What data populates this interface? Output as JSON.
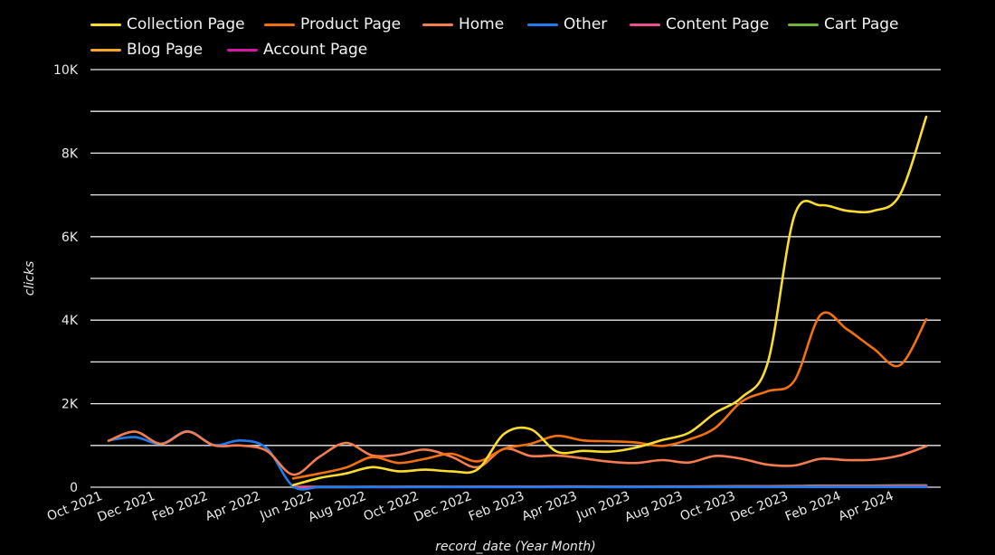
{
  "chart_data": {
    "type": "line",
    "title": "",
    "xlabel": "record_date (Year Month)",
    "ylabel": "clicks",
    "ylim": [
      0,
      10000
    ],
    "y_ticks": [
      {
        "value": 0,
        "label": "0"
      },
      {
        "value": 2000,
        "label": "2K"
      },
      {
        "value": 4000,
        "label": "4K"
      },
      {
        "value": 6000,
        "label": "6K"
      },
      {
        "value": 8000,
        "label": "8K"
      },
      {
        "value": 10000,
        "label": "10K"
      }
    ],
    "gridlines": [
      0,
      1000,
      2000,
      3000,
      4000,
      5000,
      6000,
      7000,
      8000,
      9000,
      10000
    ],
    "grid": true,
    "legend_position": "top",
    "categories": [
      "Oct 2021",
      "Nov 2021",
      "Dec 2021",
      "Jan 2022",
      "Feb 2022",
      "Mar 2022",
      "Apr 2022",
      "May 2022",
      "Jun 2022",
      "Jul 2022",
      "Aug 2022",
      "Sep 2022",
      "Oct 2022",
      "Nov 2022",
      "Dec 2022",
      "Jan 2023",
      "Feb 2023",
      "Mar 2023",
      "Apr 2023",
      "May 2023",
      "Jun 2023",
      "Jul 2023",
      "Aug 2023",
      "Sep 2023",
      "Oct 2023",
      "Nov 2023",
      "Dec 2023",
      "Jan 2024",
      "Feb 2024",
      "Mar 2024",
      "Apr 2024",
      "May 2024"
    ],
    "x_tick_labels": [
      "Oct 2021",
      "Dec 2021",
      "Feb 2022",
      "Apr 2022",
      "Jun 2022",
      "Aug 2022",
      "Oct 2022",
      "Dec 2022",
      "Feb 2023",
      "Apr 2023",
      "Jun 2023",
      "Aug 2023",
      "Oct 2023",
      "Dec 2023",
      "Feb 2024",
      "Apr 2024"
    ],
    "series": [
      {
        "name": "Collection Page",
        "color": "#f9dc2e",
        "values": [
          null,
          null,
          null,
          null,
          null,
          null,
          null,
          50,
          220,
          330,
          480,
          380,
          420,
          380,
          430,
          1280,
          1390,
          850,
          870,
          850,
          950,
          1130,
          1300,
          1780,
          2150,
          3000,
          6500,
          6750,
          6620,
          6620,
          7000,
          8870
        ]
      },
      {
        "name": "Product Page",
        "color": "#f2700d",
        "values": [
          null,
          null,
          null,
          null,
          null,
          null,
          null,
          210,
          330,
          470,
          720,
          580,
          680,
          800,
          620,
          920,
          1040,
          1230,
          1120,
          1100,
          1070,
          990,
          1140,
          1420,
          2050,
          2300,
          2550,
          4130,
          3780,
          3320,
          2920,
          4020
        ]
      },
      {
        "name": "Home",
        "color": "#f47c4f",
        "values": [
          1110,
          1330,
          1040,
          1330,
          1000,
          1000,
          870,
          300,
          730,
          1060,
          760,
          780,
          900,
          730,
          480,
          920,
          750,
          760,
          690,
          610,
          580,
          650,
          590,
          750,
          680,
          540,
          520,
          680,
          650,
          660,
          760,
          980
        ]
      },
      {
        "name": "Other",
        "color": "#1e7cf0",
        "values": [
          1120,
          1200,
          1040,
          1340,
          1010,
          1120,
          930,
          20,
          5,
          5,
          5,
          5,
          5,
          5,
          5,
          5,
          5,
          5,
          5,
          5,
          5,
          5,
          5,
          5,
          5,
          5,
          5,
          5,
          5,
          5,
          5,
          5
        ]
      },
      {
        "name": "Content Page",
        "color": "#ea4f90",
        "values": [
          null,
          null,
          null,
          null,
          null,
          null,
          null,
          8,
          8,
          10,
          10,
          10,
          12,
          10,
          12,
          15,
          15,
          15,
          15,
          12,
          12,
          12,
          15,
          15,
          18,
          20,
          20,
          25,
          25,
          25,
          28,
          30
        ]
      },
      {
        "name": "Cart Page",
        "color": "#6db43c",
        "values": [
          null,
          null,
          null,
          null,
          null,
          null,
          null,
          5,
          6,
          6,
          8,
          8,
          12,
          10,
          10,
          15,
          15,
          18,
          18,
          15,
          15,
          18,
          18,
          20,
          25,
          25,
          30,
          40,
          40,
          40,
          45,
          45
        ]
      },
      {
        "name": "Blog Page",
        "color": "#f5a623",
        "values": [
          null,
          null,
          null,
          null,
          null,
          null,
          null,
          3,
          4,
          5,
          6,
          6,
          8,
          6,
          8,
          10,
          12,
          12,
          15,
          12,
          12,
          15,
          15,
          18,
          20,
          20,
          22,
          25,
          25,
          25,
          28,
          30
        ]
      },
      {
        "name": "Account Page",
        "color": "#d716a8",
        "values": [
          null,
          null,
          null,
          null,
          null,
          null,
          null,
          2,
          2,
          3,
          3,
          3,
          4,
          4,
          4,
          5,
          5,
          5,
          6,
          5,
          5,
          6,
          6,
          6,
          7,
          7,
          8,
          8,
          8,
          8,
          9,
          9
        ]
      }
    ]
  }
}
